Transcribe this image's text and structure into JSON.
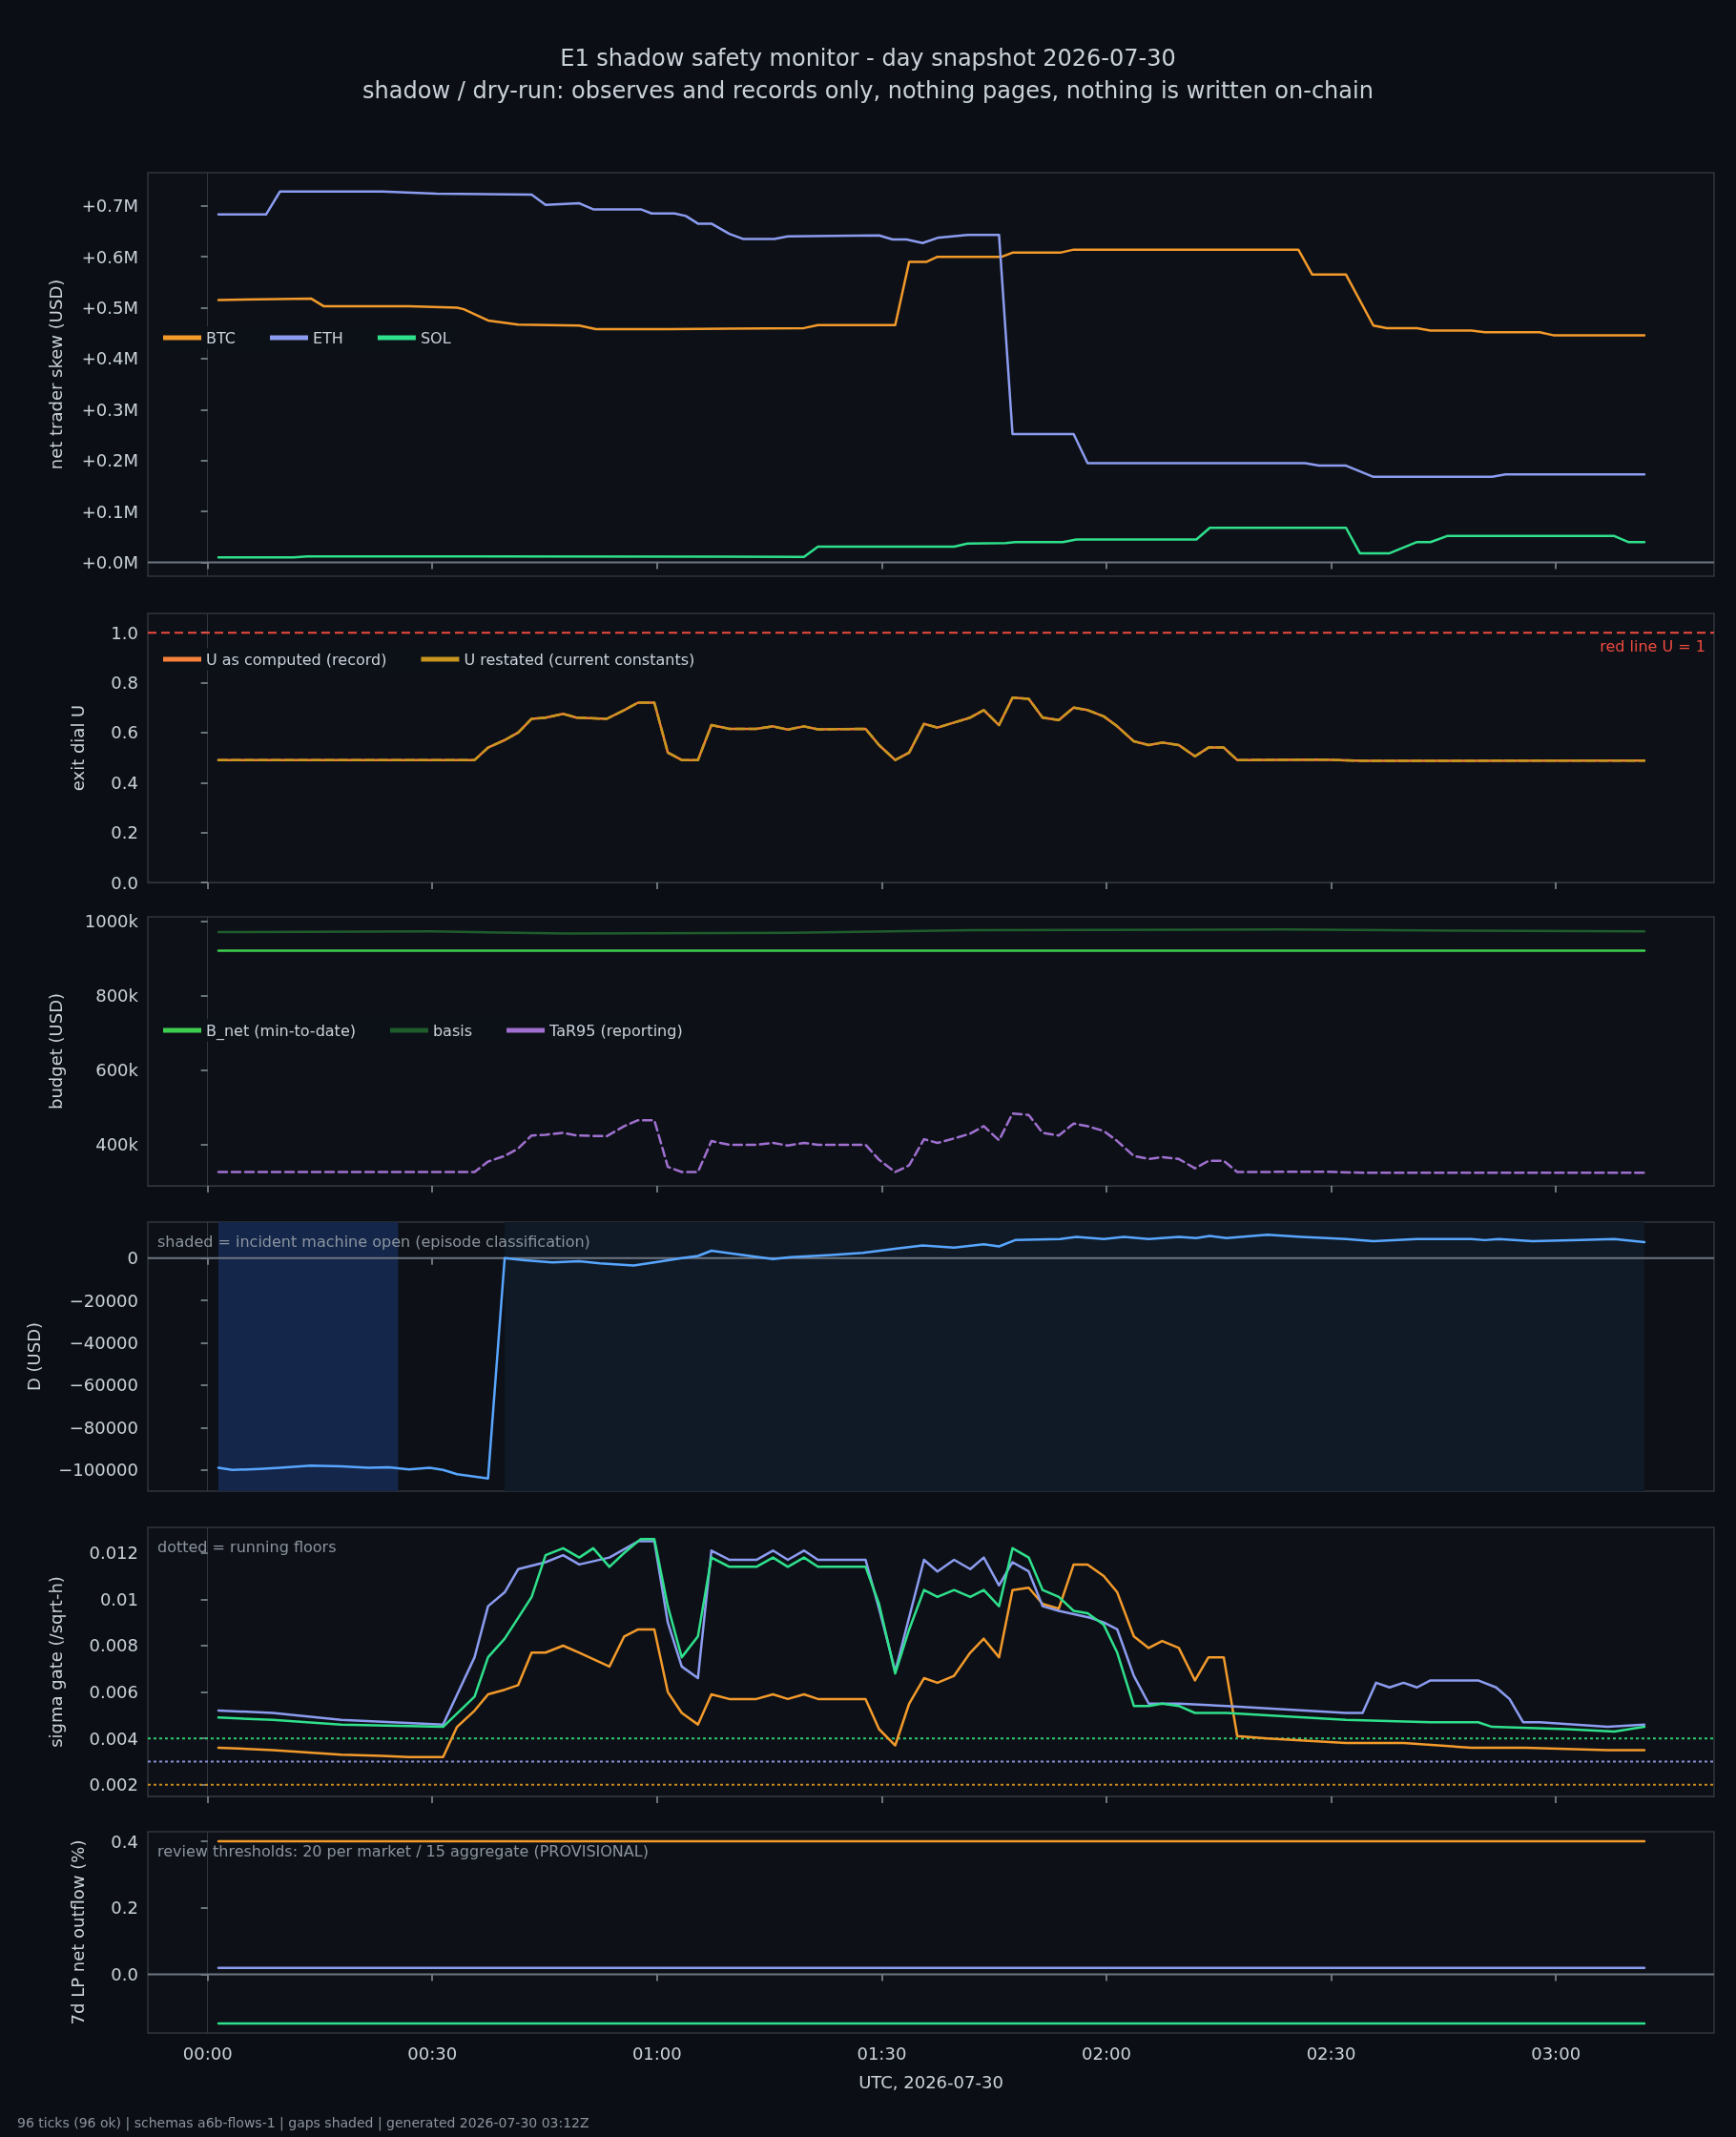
{
  "chart_data": [
    {
      "type": "line",
      "title": "E1 shadow safety monitor - day snapshot 2026-07-30",
      "subtitle": "shadow / dry-run: observes and records only, nothing pages, nothing is written on-chain",
      "ylabel": "net trader skew (USD)",
      "legend": "left",
      "tick_labels": "y",
      "marker": "none",
      "xlim": [
        -0.133,
        3.352
      ],
      "xticks": [
        {
          "value": 0,
          "label": null
        },
        {
          "value": 0.5,
          "label": null
        },
        {
          "value": 1,
          "label": null
        },
        {
          "value": 1.5,
          "label": null
        },
        {
          "value": 2,
          "label": null
        },
        {
          "value": 2.5,
          "label": null
        },
        {
          "value": 3,
          "label": null
        }
      ],
      "ylim": [
        -0.027,
        0.765
      ],
      "yticks": [
        {
          "value": 0,
          "label": "+0.0M"
        },
        {
          "value": 0.1,
          "label": "+0.1M"
        },
        {
          "value": 0.2,
          "label": "+0.2M"
        },
        {
          "value": 0.3,
          "label": "+0.3M"
        },
        {
          "value": 0.4,
          "label": "+0.4M"
        },
        {
          "value": 0.5,
          "label": "+0.5M"
        },
        {
          "value": 0.6,
          "label": "+0.6M"
        },
        {
          "value": 0.7,
          "label": "+0.7M"
        }
      ],
      "ref_lines": [
        {
          "axis": "y",
          "value": 0,
          "color": "#6e7681"
        }
      ],
      "series": [
        {
          "name": "BTC",
          "color": "#f39a2b",
          "x": [
            0.024,
            0.23,
            0.258,
            0.448,
            0.555,
            0.57,
            0.624,
            0.691,
            0.827,
            0.864,
            1.024,
            1.327,
            1.358,
            1.53,
            1.561,
            1.6,
            1.624,
            1.767,
            1.791,
            1.897,
            1.927,
            2.427,
            2.458,
            2.533,
            2.594,
            2.624,
            2.691,
            2.721,
            2.812,
            2.842,
            2.964,
            2.994,
            3.197
          ],
          "values": [
            0.515,
            0.518,
            0.503,
            0.503,
            0.5,
            0.497,
            0.475,
            0.467,
            0.465,
            0.458,
            0.458,
            0.46,
            0.466,
            0.466,
            0.59,
            0.59,
            0.6,
            0.6,
            0.608,
            0.608,
            0.614,
            0.614,
            0.565,
            0.565,
            0.465,
            0.46,
            0.46,
            0.455,
            0.455,
            0.452,
            0.452,
            0.446,
            0.446
          ]
        },
        {
          "name": "ETH",
          "color": "#8c9cf0",
          "x": [
            0.024,
            0.13,
            0.161,
            0.388,
            0.509,
            0.721,
            0.752,
            0.827,
            0.858,
            0.964,
            0.988,
            1.039,
            1.064,
            1.091,
            1.121,
            1.161,
            1.191,
            1.261,
            1.291,
            1.494,
            1.524,
            1.555,
            1.591,
            1.624,
            1.691,
            1.761,
            1.791,
            1.927,
            1.958,
            2.442,
            2.473,
            2.533,
            2.594,
            2.858,
            2.888,
            3.197
          ],
          "values": [
            0.683,
            0.683,
            0.728,
            0.728,
            0.724,
            0.722,
            0.702,
            0.705,
            0.693,
            0.693,
            0.685,
            0.685,
            0.68,
            0.665,
            0.665,
            0.645,
            0.635,
            0.635,
            0.64,
            0.642,
            0.634,
            0.634,
            0.627,
            0.637,
            0.643,
            0.643,
            0.252,
            0.252,
            0.195,
            0.195,
            0.19,
            0.19,
            0.168,
            0.168,
            0.173,
            0.173
          ]
        },
        {
          "name": "SOL",
          "color": "#2fe08c",
          "x": [
            0.024,
            0.191,
            0.221,
            1.327,
            1.358,
            1.661,
            1.691,
            1.776,
            1.797,
            1.903,
            1.933,
            2.2,
            2.23,
            2.533,
            2.564,
            2.63,
            2.691,
            2.721,
            2.758,
            3.13,
            3.161,
            3.197
          ],
          "values": [
            0.01,
            0.01,
            0.012,
            0.011,
            0.031,
            0.031,
            0.037,
            0.038,
            0.04,
            0.04,
            0.045,
            0.045,
            0.068,
            0.068,
            0.018,
            0.018,
            0.04,
            0.04,
            0.052,
            0.052,
            0.04,
            0.04
          ]
        }
      ]
    },
    {
      "type": "line",
      "ylabel": "exit dial U",
      "legend": "top left",
      "tick_labels": "y",
      "marker": "none",
      "xlim": [
        -0.133,
        3.352
      ],
      "xticks": [
        {
          "value": 0,
          "label": null
        },
        {
          "value": 0.5,
          "label": null
        },
        {
          "value": 1,
          "label": null
        },
        {
          "value": 1.5,
          "label": null
        },
        {
          "value": 2,
          "label": null
        },
        {
          "value": 2.5,
          "label": null
        },
        {
          "value": 3,
          "label": null
        }
      ],
      "ylim": [
        0,
        1.077
      ],
      "yticks": [
        {
          "value": 0,
          "label": "0.0"
        },
        {
          "value": 0.2,
          "label": "0.2"
        },
        {
          "value": 0.4,
          "label": "0.4"
        },
        {
          "value": 0.6,
          "label": "0.6"
        },
        {
          "value": 0.8,
          "label": "0.8"
        },
        {
          "value": 1,
          "label": "1.0"
        }
      ],
      "ref_lines": [
        {
          "axis": "y",
          "value": 1,
          "label": "red line U = 1",
          "color": "#f04a3f",
          "line_style": "dashed"
        }
      ],
      "x": [
        0.024,
        0.594,
        0.624,
        0.661,
        0.691,
        0.721,
        0.752,
        0.791,
        0.821,
        0.888,
        0.927,
        0.958,
        0.994,
        1.024,
        1.055,
        1.091,
        1.121,
        1.161,
        1.221,
        1.258,
        1.291,
        1.327,
        1.358,
        1.464,
        1.494,
        1.53,
        1.561,
        1.594,
        1.624,
        1.661,
        1.697,
        1.727,
        1.761,
        1.791,
        1.827,
        1.858,
        1.894,
        1.927,
        1.958,
        1.994,
        2.024,
        2.061,
        2.094,
        2.124,
        2.161,
        2.197,
        2.227,
        2.261,
        2.291,
        2.479,
        2.57,
        3.197
      ],
      "series": [
        {
          "name": "U as computed (record)",
          "color": "#f5813a",
          "values": [
            0.49,
            0.49,
            0.54,
            0.57,
            0.6,
            0.655,
            0.66,
            0.675,
            0.66,
            0.655,
            0.69,
            0.72,
            0.72,
            0.52,
            0.49,
            0.49,
            0.63,
            0.615,
            0.615,
            0.625,
            0.612,
            0.625,
            0.613,
            0.615,
            0.55,
            0.49,
            0.52,
            0.635,
            0.62,
            0.64,
            0.66,
            0.69,
            0.63,
            0.74,
            0.735,
            0.66,
            0.65,
            0.7,
            0.69,
            0.665,
            0.625,
            0.565,
            0.55,
            0.56,
            0.55,
            0.505,
            0.54,
            0.54,
            0.49,
            0.492,
            0.487,
            0.488
          ]
        },
        {
          "name": "U restated (current constants)",
          "color": "#c8961e",
          "line_style": "dashed",
          "values": [
            0.49,
            0.49,
            0.54,
            0.57,
            0.6,
            0.655,
            0.66,
            0.675,
            0.66,
            0.655,
            0.69,
            0.72,
            0.72,
            0.52,
            0.49,
            0.49,
            0.63,
            0.615,
            0.615,
            0.625,
            0.612,
            0.625,
            0.613,
            0.615,
            0.55,
            0.49,
            0.52,
            0.635,
            0.62,
            0.64,
            0.66,
            0.69,
            0.63,
            0.74,
            0.735,
            0.66,
            0.65,
            0.7,
            0.69,
            0.665,
            0.625,
            0.565,
            0.55,
            0.56,
            0.55,
            0.505,
            0.54,
            0.54,
            0.49,
            0.492,
            0.487,
            0.488
          ]
        }
      ]
    },
    {
      "type": "line",
      "ylabel": "budget (USD)",
      "legend": "left",
      "tick_labels": "y",
      "marker": "none",
      "xlim": [
        -0.133,
        3.352
      ],
      "xticks": [
        {
          "value": 0,
          "label": null
        },
        {
          "value": 0.5,
          "label": null
        },
        {
          "value": 1,
          "label": null
        },
        {
          "value": 1.5,
          "label": null
        },
        {
          "value": 2,
          "label": null
        },
        {
          "value": 2.5,
          "label": null
        },
        {
          "value": 3,
          "label": null
        }
      ],
      "ylim": [
        290,
        1011
      ],
      "yticks": [
        {
          "value": 400,
          "label": "400k"
        },
        {
          "value": 600,
          "label": "600k"
        },
        {
          "value": 800,
          "label": "800k"
        },
        {
          "value": 1000,
          "label": "1000k"
        }
      ],
      "series": [
        {
          "name": "B_net (min-to-date)",
          "color": "#3fcf50",
          "x": [
            0.024,
            3.197
          ],
          "values": [
            920,
            920
          ]
        },
        {
          "name": "basis",
          "color": "#1f5c2c",
          "x": [
            0.024,
            0.5,
            0.8,
            1.3,
            1.7,
            2.4,
            2.8,
            3.197
          ],
          "values": [
            970,
            972,
            966,
            968,
            975,
            977,
            974,
            972
          ]
        },
        {
          "name": "TaR95 (reporting)",
          "color": "#a070d0",
          "line_style": "dashed",
          "x": [
            0.024,
            0.594,
            0.624,
            0.661,
            0.691,
            0.721,
            0.752,
            0.791,
            0.821,
            0.888,
            0.927,
            0.958,
            0.994,
            1.024,
            1.055,
            1.091,
            1.121,
            1.161,
            1.221,
            1.258,
            1.291,
            1.327,
            1.358,
            1.464,
            1.494,
            1.53,
            1.561,
            1.594,
            1.624,
            1.661,
            1.697,
            1.727,
            1.761,
            1.791,
            1.827,
            1.858,
            1.894,
            1.927,
            1.958,
            1.994,
            2.024,
            2.061,
            2.094,
            2.124,
            2.161,
            2.197,
            2.227,
            2.261,
            2.291,
            2.479,
            2.57,
            3.197
          ],
          "values": [
            327,
            327,
            355,
            370,
            390,
            425,
            427,
            432,
            425,
            423,
            450,
            466,
            466,
            341,
            327,
            327,
            410,
            400,
            400,
            405,
            398,
            405,
            400,
            400,
            360,
            327,
            345,
            415,
            405,
            417,
            430,
            450,
            412,
            484,
            480,
            432,
            425,
            457,
            450,
            437,
            410,
            370,
            362,
            367,
            362,
            337,
            357,
            357,
            327,
            328,
            325,
            325
          ]
        }
      ]
    },
    {
      "type": "line",
      "ylabel": "D (USD)",
      "tick_labels": "y",
      "marker": "none",
      "annotations": [
        "shaded = incident machine open (episode classification)"
      ],
      "xlim": [
        -0.133,
        3.352
      ],
      "xticks": [
        {
          "value": 0,
          "label": null
        },
        {
          "value": 0.5,
          "label": null
        },
        {
          "value": 1,
          "label": null
        },
        {
          "value": 1.5,
          "label": null
        },
        {
          "value": 2,
          "label": null
        },
        {
          "value": 2.5,
          "label": null
        },
        {
          "value": 3,
          "label": null
        }
      ],
      "ylim": [
        -110000,
        17000
      ],
      "yticks": [
        {
          "value": -100000,
          "label": "−100000"
        },
        {
          "value": -80000,
          "label": "−80000"
        },
        {
          "value": -60000,
          "label": "−60000"
        },
        {
          "value": -40000,
          "label": "−40000"
        },
        {
          "value": -20000,
          "label": "−20000"
        },
        0
      ],
      "ref_lines": [
        {
          "axis": "y",
          "value": 0,
          "color": "#6e7681"
        }
      ],
      "bands": [
        {
          "axis": "x",
          "from": 0.024,
          "to": 0.424,
          "color": "#14264a"
        },
        {
          "axis": "x",
          "from": 0.661,
          "to": 3.197,
          "color": "#0f1a26"
        }
      ],
      "series": [
        {
          "color": "#58a6ff",
          "x": [
            0.024,
            0.055,
            0.115,
            0.161,
            0.23,
            0.297,
            0.358,
            0.403,
            0.448,
            0.494,
            0.524,
            0.555,
            0.624,
            0.661,
            0.706,
            0.767,
            0.827,
            0.873,
            0.948,
            0.994,
            1.055,
            1.091,
            1.121,
            1.191,
            1.258,
            1.297,
            1.388,
            1.458,
            1.533,
            1.591,
            1.661,
            1.727,
            1.761,
            1.797,
            1.897,
            1.933,
            1.994,
            2.039,
            2.094,
            2.161,
            2.2,
            2.23,
            2.267,
            2.358,
            2.433,
            2.533,
            2.594,
            2.691,
            2.812,
            2.842,
            2.873,
            2.948,
            3.055,
            3.13,
            3.197
          ],
          "values": [
            -99000,
            -100000,
            -99500,
            -99000,
            -98000,
            -98300,
            -99000,
            -98700,
            -99800,
            -99000,
            -100000,
            -102000,
            -104000,
            0,
            -1000,
            -2000,
            -1500,
            -2500,
            -3500,
            -2000,
            0,
            1000,
            3500,
            1500,
            -500,
            500,
            1500,
            2500,
            4500,
            6000,
            5000,
            6500,
            5500,
            8500,
            9000,
            10000,
            9000,
            10000,
            9000,
            10000,
            9500,
            10500,
            9500,
            11000,
            10000,
            9000,
            8000,
            9000,
            9000,
            8500,
            9000,
            8000,
            8500,
            9000,
            7500
          ]
        }
      ]
    },
    {
      "type": "line",
      "ylabel": "sigma gate (/sqrt-h)",
      "tick_labels": "y",
      "marker": "none",
      "annotations": [
        "dotted = running floors"
      ],
      "xlim": [
        -0.133,
        3.352
      ],
      "xticks": [
        {
          "value": 0,
          "label": null
        },
        {
          "value": 0.5,
          "label": null
        },
        {
          "value": 1,
          "label": null
        },
        {
          "value": 1.5,
          "label": null
        },
        {
          "value": 2,
          "label": null
        },
        {
          "value": 2.5,
          "label": null
        },
        {
          "value": 3,
          "label": null
        }
      ],
      "ylim": [
        0.0015,
        0.0131
      ],
      "yticks": [
        0.002,
        0.004,
        0.006,
        0.008,
        0.01,
        0.012
      ],
      "ref_lines": [
        {
          "axis": "y",
          "value": 0.004,
          "color": "#2ecc71",
          "line_style": "dotted"
        },
        {
          "axis": "y",
          "value": 0.003,
          "color": "#8a8fd8",
          "line_style": "dotted"
        },
        {
          "axis": "y",
          "value": 0.002,
          "color": "#c8861e",
          "line_style": "dotted"
        }
      ],
      "series": [
        {
          "color": "#f39a2b",
          "x": [
            0.024,
            0.145,
            0.297,
            0.388,
            0.448,
            0.524,
            0.555,
            0.594,
            0.624,
            0.661,
            0.691,
            0.721,
            0.752,
            0.791,
            0.827,
            0.894,
            0.927,
            0.958,
            0.994,
            1.024,
            1.055,
            1.091,
            1.121,
            1.161,
            1.221,
            1.258,
            1.291,
            1.327,
            1.358,
            1.464,
            1.494,
            1.53,
            1.561,
            1.594,
            1.624,
            1.661,
            1.697,
            1.727,
            1.761,
            1.791,
            1.827,
            1.858,
            1.894,
            1.927,
            1.958,
            1.994,
            2.024,
            2.061,
            2.094,
            2.124,
            2.161,
            2.197,
            2.227,
            2.261,
            2.291,
            2.358,
            2.533,
            2.661,
            2.812,
            2.933,
            3.115,
            3.197
          ],
          "values": [
            0.0036,
            0.0035,
            0.0033,
            0.00325,
            0.0032,
            0.0032,
            0.0045,
            0.0052,
            0.0059,
            0.0061,
            0.0063,
            0.0077,
            0.0077,
            0.008,
            0.0077,
            0.0071,
            0.0084,
            0.0087,
            0.0087,
            0.006,
            0.0051,
            0.0046,
            0.0059,
            0.0057,
            0.0057,
            0.0059,
            0.0057,
            0.0059,
            0.0057,
            0.0057,
            0.0044,
            0.0037,
            0.0055,
            0.0066,
            0.0064,
            0.0067,
            0.0077,
            0.0083,
            0.0075,
            0.0104,
            0.0105,
            0.0098,
            0.0096,
            0.0115,
            0.0115,
            0.011,
            0.0103,
            0.0084,
            0.0079,
            0.0082,
            0.0079,
            0.0065,
            0.0075,
            0.0075,
            0.0041,
            0.004,
            0.0038,
            0.0038,
            0.0036,
            0.0036,
            0.0035,
            0.0035
          ]
        },
        {
          "color": "#8c9cf0",
          "x": [
            0.024,
            0.145,
            0.297,
            0.524,
            0.594,
            0.624,
            0.661,
            0.691,
            0.752,
            0.791,
            0.827,
            0.894,
            0.958,
            0.994,
            1.024,
            1.055,
            1.091,
            1.121,
            1.161,
            1.221,
            1.258,
            1.291,
            1.327,
            1.358,
            1.464,
            1.494,
            1.53,
            1.594,
            1.624,
            1.661,
            1.697,
            1.727,
            1.761,
            1.791,
            1.827,
            1.858,
            1.894,
            1.964,
            1.994,
            2.024,
            2.061,
            2.094,
            2.161,
            2.267,
            2.533,
            2.57,
            2.6,
            2.63,
            2.661,
            2.691,
            2.721,
            2.827,
            2.867,
            2.897,
            2.927,
            2.964,
            3.115,
            3.197
          ],
          "values": [
            0.0052,
            0.0051,
            0.0048,
            0.0046,
            0.0075,
            0.0097,
            0.0103,
            0.0113,
            0.0116,
            0.0119,
            0.0115,
            0.0118,
            0.0125,
            0.0125,
            0.009,
            0.0071,
            0.0066,
            0.0121,
            0.0117,
            0.0117,
            0.0121,
            0.0117,
            0.0121,
            0.0117,
            0.0117,
            0.0096,
            0.0069,
            0.0117,
            0.0112,
            0.0117,
            0.0113,
            0.0118,
            0.0106,
            0.0116,
            0.0112,
            0.0097,
            0.0095,
            0.0092,
            0.009,
            0.0087,
            0.0067,
            0.0055,
            0.0055,
            0.0054,
            0.0051,
            0.0051,
            0.0064,
            0.0062,
            0.0064,
            0.0062,
            0.0065,
            0.0065,
            0.0062,
            0.0057,
            0.0047,
            0.0047,
            0.0045,
            0.0046
          ]
        },
        {
          "color": "#2fe08c",
          "x": [
            0.024,
            0.145,
            0.297,
            0.524,
            0.594,
            0.624,
            0.661,
            0.691,
            0.721,
            0.752,
            0.791,
            0.827,
            0.858,
            0.894,
            0.927,
            0.964,
            0.994,
            1.024,
            1.055,
            1.091,
            1.121,
            1.161,
            1.221,
            1.258,
            1.291,
            1.327,
            1.358,
            1.464,
            1.494,
            1.53,
            1.561,
            1.594,
            1.624,
            1.661,
            1.697,
            1.727,
            1.761,
            1.791,
            1.827,
            1.858,
            1.894,
            1.927,
            1.958,
            1.994,
            2.024,
            2.061,
            2.094,
            2.124,
            2.161,
            2.197,
            2.267,
            2.533,
            2.721,
            2.827,
            2.858,
            3.024,
            3.13,
            3.197
          ],
          "values": [
            0.0049,
            0.0048,
            0.0046,
            0.0045,
            0.0058,
            0.0075,
            0.0083,
            0.0092,
            0.0101,
            0.0119,
            0.0122,
            0.0118,
            0.0122,
            0.0114,
            0.012,
            0.0126,
            0.0126,
            0.0097,
            0.0075,
            0.0084,
            0.0118,
            0.0114,
            0.0114,
            0.0118,
            0.0114,
            0.0118,
            0.0114,
            0.0114,
            0.0098,
            0.0068,
            0.0087,
            0.0104,
            0.0101,
            0.0104,
            0.0101,
            0.0104,
            0.0097,
            0.0122,
            0.0118,
            0.0104,
            0.0101,
            0.0095,
            0.0094,
            0.0089,
            0.0077,
            0.0054,
            0.0054,
            0.0055,
            0.0054,
            0.0051,
            0.0051,
            0.0048,
            0.0047,
            0.0047,
            0.0045,
            0.0044,
            0.0043,
            0.0045
          ]
        }
      ]
    },
    {
      "type": "line",
      "ylabel": "7d LP net outflow (%)",
      "xlabel": "UTC, 2026-07-30",
      "marker": "none",
      "annotations": [
        "review thresholds: 20 per market / 15 aggregate (PROVISIONAL)",
        "96 ticks (96 ok) | schemas a6b-flows-1 | gaps shaded | generated 2026-07-30 03:12Z"
      ],
      "xlim": [
        -0.133,
        3.352
      ],
      "xticks": [
        {
          "value": 0,
          "label": "00:00"
        },
        {
          "value": 0.5,
          "label": "00:30"
        },
        {
          "value": 1,
          "label": "01:00"
        },
        {
          "value": 1.5,
          "label": "01:30"
        },
        {
          "value": 2,
          "label": "02:00"
        },
        {
          "value": 2.5,
          "label": "02:30"
        },
        {
          "value": 3,
          "label": "03:00"
        }
      ],
      "ylim": [
        -0.176,
        0.429
      ],
      "yticks": [
        {
          "value": 0,
          "label": "0.0"
        },
        {
          "value": 0.2,
          "label": "0.2"
        },
        {
          "value": 0.4,
          "label": "0.4"
        }
      ],
      "ref_lines": [
        {
          "axis": "y",
          "value": 0,
          "color": "#6e7681"
        }
      ],
      "series": [
        {
          "color": "#f39a2b",
          "x": [
            0.024,
            3.197
          ],
          "values": [
            0.4,
            0.4
          ]
        },
        {
          "color": "#8c9cf0",
          "x": [
            0.024,
            3.197
          ],
          "values": [
            0.02,
            0.02
          ]
        },
        {
          "color": "#2fe08c",
          "x": [
            0.024,
            3.197
          ],
          "values": [
            -0.147,
            -0.147
          ]
        }
      ]
    }
  ]
}
